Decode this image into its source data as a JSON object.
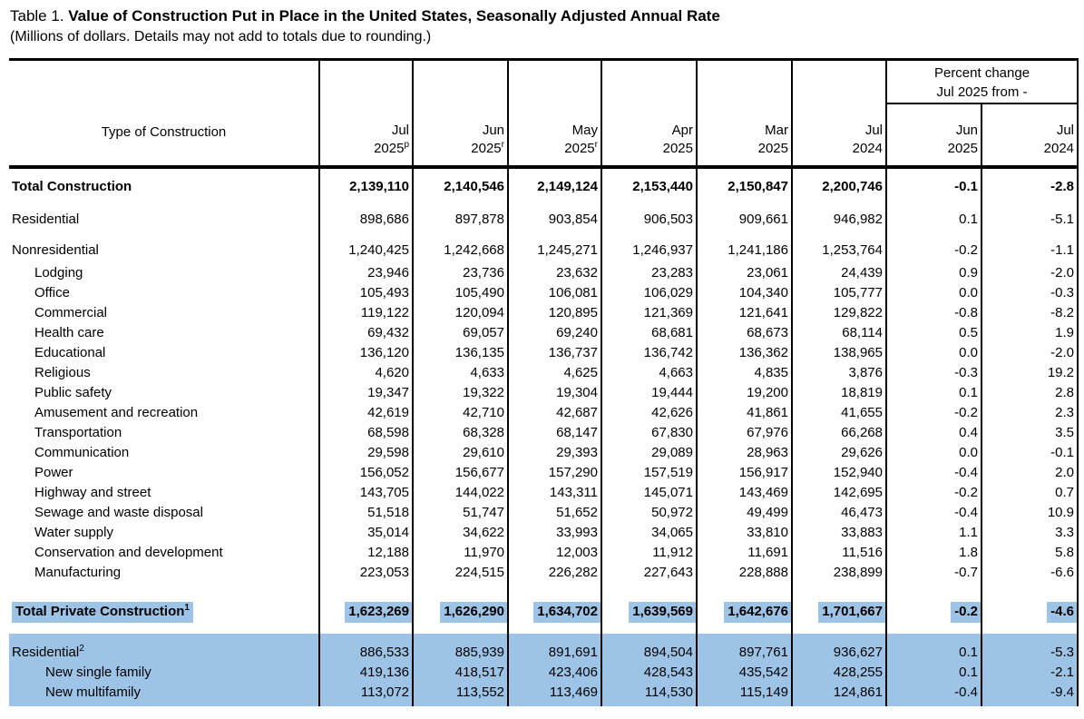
{
  "page": {
    "title_prefix": "Table 1. ",
    "title": "Value of Construction Put in Place in the United States, Seasonally Adjusted Annual Rate",
    "subtitle": "(Millions of dollars. Details may not add to totals due to rounding.)"
  },
  "colors": {
    "highlight_blue": "#9DC3E6"
  },
  "table": {
    "label_header": "Type of Construction",
    "pct_group_header": {
      "line1": "Percent change",
      "line2": "Jul 2025 from -"
    },
    "month_columns": [
      {
        "line1": "Jul",
        "line2": "2025",
        "sup": "p"
      },
      {
        "line1": "Jun",
        "line2": "2025",
        "sup": "r"
      },
      {
        "line1": "May",
        "line2": "2025",
        "sup": "r"
      },
      {
        "line1": "Apr",
        "line2": "2025",
        "sup": ""
      },
      {
        "line1": "Mar",
        "line2": "2025",
        "sup": ""
      },
      {
        "line1": "Jul",
        "line2": "2024",
        "sup": ""
      }
    ],
    "pct_columns": [
      {
        "line1": "Jun",
        "line2": "2025"
      },
      {
        "line1": "Jul",
        "line2": "2024"
      }
    ],
    "rows": [
      {
        "label": "Total Construction",
        "sup": "",
        "indent": 0,
        "kind": "total",
        "values": [
          "2,139,110",
          "2,140,546",
          "2,149,124",
          "2,153,440",
          "2,150,847",
          "2,200,746"
        ],
        "pct": [
          "-0.1",
          "-2.8"
        ]
      },
      {
        "label": "Residential",
        "sup": "",
        "indent": 0,
        "kind": "section",
        "values": [
          "898,686",
          "897,878",
          "903,854",
          "906,503",
          "909,661",
          "946,982"
        ],
        "pct": [
          "0.1",
          "-5.1"
        ]
      },
      {
        "label": "Nonresidential",
        "sup": "",
        "indent": 0,
        "kind": "section",
        "values": [
          "1,240,425",
          "1,242,668",
          "1,245,271",
          "1,246,937",
          "1,241,186",
          "1,253,764"
        ],
        "pct": [
          "-0.2",
          "-1.1"
        ]
      },
      {
        "label": "Lodging",
        "sup": "",
        "indent": 1,
        "kind": "sub",
        "values": [
          "23,946",
          "23,736",
          "23,632",
          "23,283",
          "23,061",
          "24,439"
        ],
        "pct": [
          "0.9",
          "-2.0"
        ]
      },
      {
        "label": "Office",
        "sup": "",
        "indent": 1,
        "kind": "sub",
        "values": [
          "105,493",
          "105,490",
          "106,081",
          "106,029",
          "104,340",
          "105,777"
        ],
        "pct": [
          "0.0",
          "-0.3"
        ]
      },
      {
        "label": "Commercial",
        "sup": "",
        "indent": 1,
        "kind": "sub",
        "values": [
          "119,122",
          "120,094",
          "120,895",
          "121,369",
          "121,641",
          "129,822"
        ],
        "pct": [
          "-0.8",
          "-8.2"
        ]
      },
      {
        "label": "Health care",
        "sup": "",
        "indent": 1,
        "kind": "sub",
        "values": [
          "69,432",
          "69,057",
          "69,240",
          "68,681",
          "68,673",
          "68,114"
        ],
        "pct": [
          "0.5",
          "1.9"
        ]
      },
      {
        "label": "Educational",
        "sup": "",
        "indent": 1,
        "kind": "sub",
        "values": [
          "136,120",
          "136,135",
          "136,737",
          "136,742",
          "136,362",
          "138,965"
        ],
        "pct": [
          "0.0",
          "-2.0"
        ]
      },
      {
        "label": "Religious",
        "sup": "",
        "indent": 1,
        "kind": "sub",
        "values": [
          "4,620",
          "4,633",
          "4,625",
          "4,663",
          "4,835",
          "3,876"
        ],
        "pct": [
          "-0.3",
          "19.2"
        ]
      },
      {
        "label": "Public safety",
        "sup": "",
        "indent": 1,
        "kind": "sub",
        "values": [
          "19,347",
          "19,322",
          "19,304",
          "19,444",
          "19,200",
          "18,819"
        ],
        "pct": [
          "0.1",
          "2.8"
        ]
      },
      {
        "label": "Amusement and recreation",
        "sup": "",
        "indent": 1,
        "kind": "sub",
        "values": [
          "42,619",
          "42,710",
          "42,687",
          "42,626",
          "41,861",
          "41,655"
        ],
        "pct": [
          "-0.2",
          "2.3"
        ]
      },
      {
        "label": "Transportation",
        "sup": "",
        "indent": 1,
        "kind": "sub",
        "values": [
          "68,598",
          "68,328",
          "68,147",
          "67,830",
          "67,976",
          "66,268"
        ],
        "pct": [
          "0.4",
          "3.5"
        ]
      },
      {
        "label": "Communication",
        "sup": "",
        "indent": 1,
        "kind": "sub",
        "values": [
          "29,598",
          "29,610",
          "29,393",
          "29,089",
          "28,963",
          "29,626"
        ],
        "pct": [
          "0.0",
          "-0.1"
        ]
      },
      {
        "label": "Power",
        "sup": "",
        "indent": 1,
        "kind": "sub",
        "values": [
          "156,052",
          "156,677",
          "157,290",
          "157,519",
          "156,917",
          "152,940"
        ],
        "pct": [
          "-0.4",
          "2.0"
        ]
      },
      {
        "label": "Highway and street",
        "sup": "",
        "indent": 1,
        "kind": "sub",
        "values": [
          "143,705",
          "144,022",
          "143,311",
          "145,071",
          "143,469",
          "142,695"
        ],
        "pct": [
          "-0.2",
          "0.7"
        ]
      },
      {
        "label": "Sewage and waste disposal",
        "sup": "",
        "indent": 1,
        "kind": "sub",
        "values": [
          "51,518",
          "51,747",
          "51,652",
          "50,972",
          "49,499",
          "46,473"
        ],
        "pct": [
          "-0.4",
          "10.9"
        ]
      },
      {
        "label": "Water supply",
        "sup": "",
        "indent": 1,
        "kind": "sub",
        "values": [
          "35,014",
          "34,622",
          "33,993",
          "34,065",
          "33,810",
          "33,883"
        ],
        "pct": [
          "1.1",
          "3.3"
        ]
      },
      {
        "label": "Conservation and development",
        "sup": "",
        "indent": 1,
        "kind": "sub",
        "values": [
          "12,188",
          "11,970",
          "12,003",
          "11,912",
          "11,691",
          "11,516"
        ],
        "pct": [
          "1.8",
          "5.8"
        ]
      },
      {
        "label": "Manufacturing",
        "sup": "",
        "indent": 1,
        "kind": "sub",
        "values": [
          "223,053",
          "224,515",
          "226,282",
          "227,643",
          "228,888",
          "238,899"
        ],
        "pct": [
          "-0.7",
          "-6.6"
        ]
      },
      {
        "label": "Total Private Construction",
        "sup": "1",
        "indent": 0,
        "kind": "private",
        "values": [
          "1,623,269",
          "1,626,290",
          "1,634,702",
          "1,639,569",
          "1,642,676",
          "1,701,667"
        ],
        "pct": [
          "-0.2",
          "-4.6"
        ]
      },
      {
        "label": "Residential",
        "sup": "2",
        "indent": 0,
        "kind": "band-head",
        "values": [
          "886,533",
          "885,939",
          "891,691",
          "894,504",
          "897,761",
          "936,627"
        ],
        "pct": [
          "0.1",
          "-5.3"
        ]
      },
      {
        "label": "New single family",
        "sup": "",
        "indent": 2,
        "kind": "band-sub",
        "values": [
          "419,136",
          "418,517",
          "423,406",
          "428,543",
          "435,542",
          "428,255"
        ],
        "pct": [
          "0.1",
          "-2.1"
        ]
      },
      {
        "label": "New multifamily",
        "sup": "",
        "indent": 2,
        "kind": "band-sub",
        "values": [
          "113,072",
          "113,552",
          "113,469",
          "114,530",
          "115,149",
          "124,861"
        ],
        "pct": [
          "-0.4",
          "-9.4"
        ]
      }
    ]
  }
}
